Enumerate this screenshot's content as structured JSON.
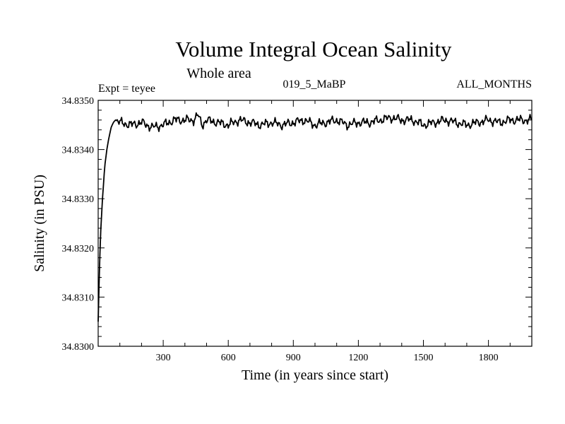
{
  "chart_data": {
    "type": "line",
    "title": "Volume Integral Ocean Salinity",
    "subtitle": "Whole area",
    "annotations": {
      "experiment": "Expt = teyee",
      "run": "019_5_MaBP",
      "months": "ALL_MONTHS"
    },
    "xlabel": "Time (in years since start)",
    "ylabel": "Salinity (in PSU)",
    "xlim": [
      0,
      2000
    ],
    "ylim": [
      34.83,
      34.835
    ],
    "x_ticks": [
      300,
      600,
      900,
      1200,
      1500,
      1800
    ],
    "x_tick_labels": [
      "300",
      "600",
      "900",
      "1200",
      "1500",
      "1800"
    ],
    "y_ticks": [
      34.83,
      34.831,
      34.832,
      34.833,
      34.834,
      34.835
    ],
    "y_tick_labels": [
      "34.8300",
      "34.8310",
      "34.8320",
      "34.8330",
      "34.8340",
      "34.8350"
    ],
    "grid": false,
    "legend": "none",
    "series": [
      {
        "name": "Salinity",
        "color": "#000000",
        "x": [
          0,
          5,
          10,
          20,
          30,
          40,
          50,
          60,
          70,
          80,
          100,
          150,
          200,
          250,
          300,
          350,
          400,
          440,
          460,
          480,
          500,
          550,
          600,
          650,
          700,
          750,
          800,
          850,
          900,
          950,
          1000,
          1050,
          1100,
          1150,
          1200,
          1250,
          1300,
          1350,
          1400,
          1450,
          1500,
          1550,
          1600,
          1650,
          1700,
          1750,
          1800,
          1850,
          1900,
          1950,
          2000
        ],
        "y": [
          34.8305,
          34.8314,
          34.8322,
          34.833,
          34.83365,
          34.834,
          34.83425,
          34.83445,
          34.83455,
          34.8346,
          34.83455,
          34.8345,
          34.83455,
          34.83445,
          34.8345,
          34.8346,
          34.8346,
          34.8346,
          34.8347,
          34.8345,
          34.8346,
          34.83455,
          34.8345,
          34.8346,
          34.83455,
          34.8345,
          34.83455,
          34.8345,
          34.83455,
          34.8346,
          34.8345,
          34.83455,
          34.8346,
          34.8345,
          34.83455,
          34.83455,
          34.8346,
          34.83465,
          34.8346,
          34.8346,
          34.8345,
          34.83455,
          34.8346,
          34.83455,
          34.8345,
          34.83455,
          34.8346,
          34.83455,
          34.8346,
          34.8346,
          34.8346
        ]
      }
    ]
  }
}
